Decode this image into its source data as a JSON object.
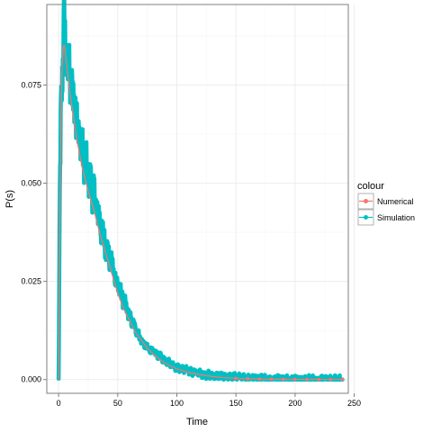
{
  "chart_data": {
    "type": "line",
    "title": "",
    "xlabel": "Time",
    "ylabel": "P(s)",
    "xlim": [
      -10,
      245
    ],
    "ylim": [
      -0.0035,
      0.0955
    ],
    "x_ticks": [
      0,
      50,
      100,
      150,
      200,
      250
    ],
    "x_tick_labels": [
      "0",
      "50",
      "100",
      "150",
      "200",
      "250"
    ],
    "y_ticks": [
      0.0,
      0.025,
      0.05,
      0.075
    ],
    "y_tick_labels": [
      "0.000",
      "0.025",
      "0.050",
      "0.075"
    ],
    "grid": true,
    "legend": {
      "title": "colour",
      "placement": "right",
      "entries": [
        "Numerical",
        "Simulation"
      ]
    },
    "colors": {
      "Numerical": "#F8766D",
      "Simulation": "#00BFC4"
    },
    "series": [
      {
        "name": "Simulation",
        "style": "noisy-line-points",
        "x": [
          0,
          1,
          2,
          3,
          4,
          5,
          6,
          8,
          10,
          12,
          15,
          18,
          20,
          25,
          30,
          35,
          40,
          45,
          50,
          55,
          60,
          65,
          70,
          75,
          80,
          85,
          90,
          95,
          100,
          110,
          120,
          130,
          140,
          150,
          160,
          170,
          180,
          190,
          200,
          210,
          220,
          230,
          240
        ],
        "values": [
          0.0,
          0.045,
          0.07,
          0.078,
          0.085,
          0.092,
          0.083,
          0.079,
          0.076,
          0.072,
          0.067,
          0.062,
          0.059,
          0.052,
          0.047,
          0.04,
          0.034,
          0.029,
          0.024,
          0.02,
          0.016,
          0.013,
          0.01,
          0.008,
          0.007,
          0.006,
          0.005,
          0.004,
          0.003,
          0.0022,
          0.0015,
          0.001,
          0.0008,
          0.0006,
          0.0004,
          0.0003,
          0.0002,
          0.0002,
          0.0001,
          0.0001,
          0.0001,
          0.0,
          0.0
        ]
      },
      {
        "name": "Numerical",
        "style": "smooth-line",
        "x": [
          0,
          1,
          2,
          3,
          4,
          5,
          6,
          8,
          10,
          12,
          15,
          18,
          20,
          25,
          30,
          35,
          40,
          45,
          50,
          55,
          60,
          65,
          70,
          75,
          80,
          85,
          90,
          95,
          100,
          110,
          120,
          130,
          140,
          150,
          160,
          170,
          180,
          190,
          200,
          210,
          220,
          230,
          240
        ],
        "values": [
          0.0,
          0.04,
          0.068,
          0.08,
          0.085,
          0.085,
          0.082,
          0.077,
          0.072,
          0.068,
          0.062,
          0.057,
          0.054,
          0.048,
          0.043,
          0.037,
          0.032,
          0.027,
          0.022,
          0.018,
          0.015,
          0.012,
          0.01,
          0.008,
          0.0065,
          0.0052,
          0.0042,
          0.0034,
          0.0027,
          0.0018,
          0.0012,
          0.0008,
          0.0005,
          0.0003,
          0.0002,
          0.00014,
          0.0001,
          6e-05,
          4e-05,
          3e-05,
          2e-05,
          1e-05,
          1e-05
        ]
      }
    ]
  }
}
